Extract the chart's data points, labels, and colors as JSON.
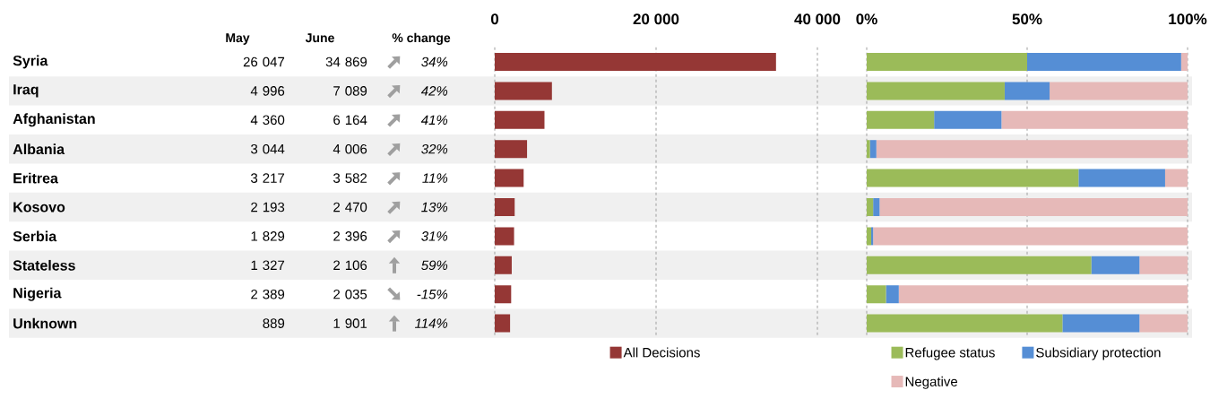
{
  "chart_data": [
    {
      "type": "other",
      "data_labels": true,
      "categories": [
        "Syria",
        "Iraq",
        "Afghanistan",
        "Albania",
        "Eritrea",
        "Kosovo",
        "Serbia",
        "Stateless",
        "Nigeria",
        "Unknown"
      ],
      "series": [
        {
          "name": "May",
          "values": [
            26047,
            4996,
            4360,
            3044,
            3217,
            2193,
            1829,
            1327,
            2389,
            889
          ]
        },
        {
          "name": "June",
          "values": [
            34869,
            7089,
            6164,
            4006,
            3582,
            2470,
            2396,
            2106,
            2035,
            1901
          ]
        },
        {
          "name": "% change",
          "values": [
            34,
            42,
            41,
            32,
            11,
            13,
            31,
            59,
            -15,
            114
          ],
          "value_labels": [
            "34%",
            "42%",
            "41%",
            "32%",
            "11%",
            "13%",
            "31%",
            "59%",
            "-15%",
            "114%"
          ]
        }
      ]
    },
    {
      "type": "bar",
      "orientation": "horizontal",
      "grid": "x",
      "legend": "bottom",
      "categories": [
        null,
        null,
        null,
        null,
        null,
        null,
        null,
        null,
        null,
        null
      ],
      "xlim": [
        0,
        40000
      ],
      "xticks": [
        0,
        {
          "value": 20000,
          "label": "20 000"
        },
        {
          "value": 40000,
          "label": "40 000"
        }
      ],
      "series": [
        {
          "name": "All Decisions",
          "color": "#953735",
          "values": [
            34869,
            7089,
            6164,
            4006,
            3582,
            2470,
            2396,
            2106,
            2035,
            1901
          ]
        }
      ]
    },
    {
      "type": "bar",
      "orientation": "horizontal",
      "stacked": true,
      "grid": "x",
      "legend": "bottom",
      "categories": [
        null,
        null,
        null,
        null,
        null,
        null,
        null,
        null,
        null,
        null
      ],
      "xlim": [
        0,
        100
      ],
      "xticks": [
        {
          "value": 0,
          "label": "0%"
        },
        {
          "value": 50,
          "label": "50%"
        },
        {
          "value": 100,
          "label": "100%"
        }
      ],
      "series": [
        {
          "name": "Refugee status",
          "color": "#9bbb59",
          "values": [
            50,
            43,
            21,
            1,
            66,
            2,
            1.4,
            70,
            6,
            61
          ]
        },
        {
          "name": "Subsidiary protection",
          "color": "#558ed5",
          "values": [
            48,
            14,
            21,
            2,
            27,
            2,
            0.6,
            15,
            4,
            24
          ]
        },
        {
          "name": "Negative",
          "color": "#e6b9b8",
          "values": [
            2,
            43,
            58,
            97,
            7,
            96,
            98,
            15,
            90,
            15
          ]
        }
      ]
    }
  ]
}
